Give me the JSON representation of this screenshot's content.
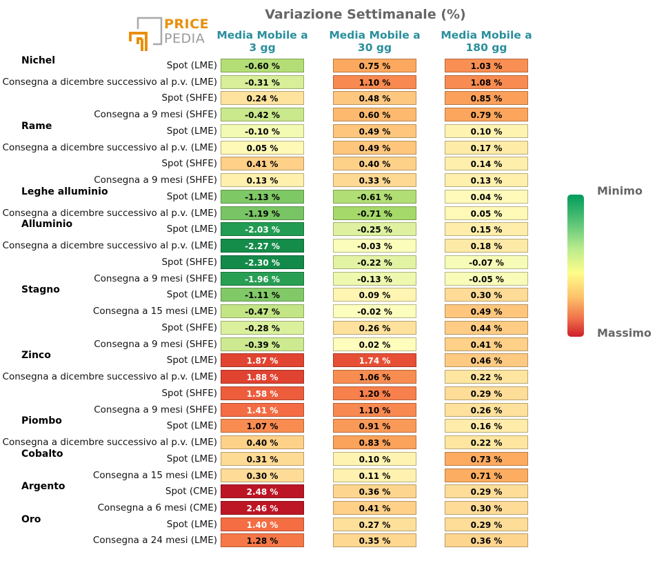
{
  "chart_data": {
    "type": "heatmap",
    "title": "Variazione Settimanale (%)",
    "columns": [
      "Media Mobile a\n3 gg",
      "Media Mobile a\n30 gg",
      "Media Mobile a\n180 gg"
    ],
    "value_suffix": " %",
    "color_scale": {
      "min_label": "Minimo",
      "max_label": "Massimo",
      "colormap": "RdYlGn (reversed)"
    },
    "groups": [
      {
        "name": "Nichel",
        "rows": [
          {
            "label": "Spot (LME)",
            "values": [
              -0.6,
              0.75,
              1.03
            ]
          },
          {
            "label": "Consegna a dicembre successivo al p.v. (LME)",
            "values": [
              -0.31,
              1.1,
              1.08
            ]
          },
          {
            "label": "Spot (SHFE)",
            "values": [
              0.24,
              0.48,
              0.85
            ]
          },
          {
            "label": "Consegna a 9 mesi (SHFE)",
            "values": [
              -0.42,
              0.6,
              0.79
            ]
          }
        ]
      },
      {
        "name": "Rame",
        "rows": [
          {
            "label": "Spot (LME)",
            "values": [
              -0.1,
              0.49,
              0.1
            ]
          },
          {
            "label": "Consegna a dicembre successivo al p.v. (LME)",
            "values": [
              0.05,
              0.49,
              0.17
            ]
          },
          {
            "label": "Spot (SHFE)",
            "values": [
              0.41,
              0.4,
              0.14
            ]
          },
          {
            "label": "Consegna a 9 mesi (SHFE)",
            "values": [
              0.13,
              0.33,
              0.13
            ]
          }
        ]
      },
      {
        "name": "Leghe alluminio",
        "rows": [
          {
            "label": "Spot (LME)",
            "values": [
              -1.13,
              -0.61,
              0.04
            ]
          },
          {
            "label": "Consegna a dicembre successivo al p.v. (LME)",
            "values": [
              -1.19,
              -0.71,
              0.05
            ]
          }
        ]
      },
      {
        "name": "Alluminio",
        "rows": [
          {
            "label": "Spot (LME)",
            "values": [
              -2.03,
              -0.25,
              0.15
            ]
          },
          {
            "label": "Consegna a dicembre successivo al p.v. (LME)",
            "values": [
              -2.27,
              -0.03,
              0.18
            ]
          },
          {
            "label": "Spot (SHFE)",
            "values": [
              -2.3,
              -0.22,
              -0.07
            ]
          },
          {
            "label": "Consegna a 9 mesi (SHFE)",
            "values": [
              -1.96,
              -0.13,
              -0.05
            ]
          }
        ]
      },
      {
        "name": "Stagno",
        "rows": [
          {
            "label": "Spot (LME)",
            "values": [
              -1.11,
              0.09,
              0.3
            ]
          },
          {
            "label": "Consegna a 15 mesi (LME)",
            "values": [
              -0.47,
              -0.02,
              0.49
            ]
          },
          {
            "label": "Spot (SHFE)",
            "values": [
              -0.28,
              0.26,
              0.44
            ]
          },
          {
            "label": "Consegna a 9 mesi (SHFE)",
            "values": [
              -0.39,
              0.02,
              0.41
            ]
          }
        ]
      },
      {
        "name": "Zinco",
        "rows": [
          {
            "label": "Spot (LME)",
            "values": [
              1.87,
              1.74,
              0.46
            ]
          },
          {
            "label": "Consegna a dicembre successivo al p.v. (LME)",
            "values": [
              1.88,
              1.06,
              0.22
            ]
          },
          {
            "label": "Spot (SHFE)",
            "values": [
              1.58,
              1.2,
              0.29
            ]
          },
          {
            "label": "Consegna a 9 mesi (SHFE)",
            "values": [
              1.41,
              1.1,
              0.26
            ]
          }
        ]
      },
      {
        "name": "Piombo",
        "rows": [
          {
            "label": "Spot (LME)",
            "values": [
              1.07,
              0.91,
              0.16
            ]
          },
          {
            "label": "Consegna a dicembre successivo al p.v. (LME)",
            "values": [
              0.4,
              0.83,
              0.22
            ]
          }
        ]
      },
      {
        "name": "Cobalto",
        "rows": [
          {
            "label": "Spot (LME)",
            "values": [
              0.31,
              0.1,
              0.73
            ]
          },
          {
            "label": "Consegna a 15 mesi (LME)",
            "values": [
              0.3,
              0.11,
              0.71
            ]
          }
        ]
      },
      {
        "name": "Argento",
        "rows": [
          {
            "label": "Spot (CME)",
            "values": [
              2.48,
              0.36,
              0.29
            ]
          },
          {
            "label": "Consegna a 6 mesi (CME)",
            "values": [
              2.46,
              0.41,
              0.3
            ]
          }
        ]
      },
      {
        "name": "Oro",
        "rows": [
          {
            "label": "Spot (LME)",
            "values": [
              1.4,
              0.27,
              0.29
            ]
          },
          {
            "label": "Consegna a 24 mesi (LME)",
            "values": [
              1.28,
              0.35,
              0.36
            ]
          }
        ]
      }
    ]
  },
  "logo": {
    "line1": "PRICE",
    "line2": "PEDIA"
  },
  "colors": {
    "title": "#666666",
    "header": "#2a8f9c",
    "logo_orange": "#e8900c",
    "logo_gray": "#9a9a9a"
  }
}
